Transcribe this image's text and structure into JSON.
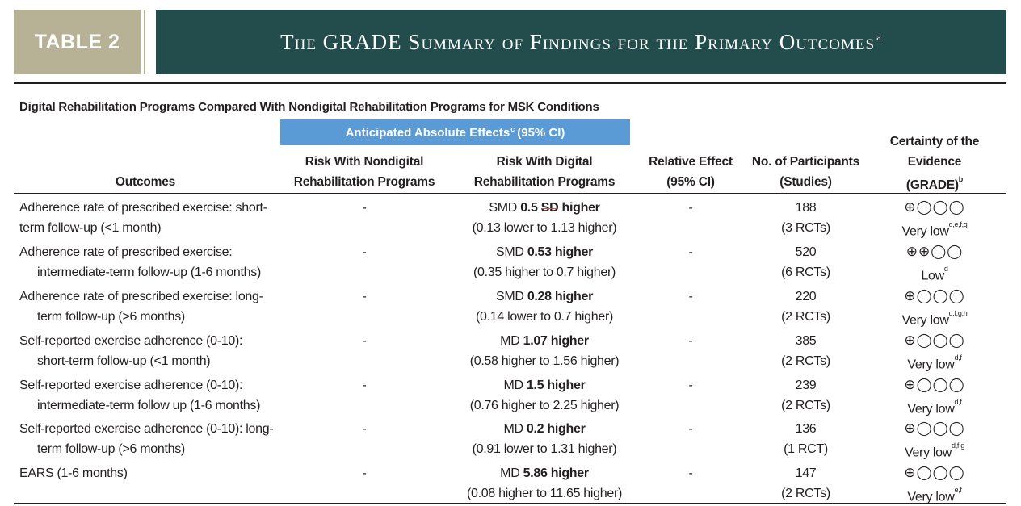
{
  "header": {
    "tag": "TABLE 2",
    "title": "The GRADE Summary of Findings for the Primary Outcomes",
    "title_sup": "a"
  },
  "subtitle": "Digital Rehabilitation Programs Compared With Nondigital Rehabilitation Programs for MSK Conditions",
  "anticipated": {
    "label": "Anticipated Absolute Effects",
    "sup": "c",
    "suffix": "(95% CI)"
  },
  "columns": {
    "outcomes": "Outcomes",
    "nondigital": [
      "Risk With Nondigital",
      "Rehabilitation Programs"
    ],
    "digital": [
      "Risk With Digital",
      "Rehabilitation Programs"
    ],
    "relative": [
      "Relative Effect",
      "(95% CI)"
    ],
    "participants": [
      "No. of Participants",
      "(Studies)"
    ],
    "certainty": [
      "Certainty of the",
      "Evidence",
      "(GRADE)",
      "b"
    ]
  },
  "rows": [
    {
      "outcome": [
        "Adherence rate of prescribed exercise: short-",
        "term follow-up (<1 month)"
      ],
      "outcome_indent": false,
      "nondigital": "-",
      "digital_prefix": "SMD",
      "digital_bold": "0.5",
      "digital_sd": "SD",
      "digital_suffix": "higher",
      "digital_ci": "(0.13 lower to 1.13 higher)",
      "relative": "-",
      "participants": "188",
      "studies": "(3 RCTs)",
      "grade_symbols": "⊕◯◯◯",
      "grade_label": "Very low",
      "grade_sup": "d,e,f,g"
    },
    {
      "outcome": [
        "Adherence rate of prescribed exercise:",
        "intermediate-term follow-up (1-6 months)"
      ],
      "outcome_indent": true,
      "nondigital": "-",
      "digital_prefix": "SMD",
      "digital_bold": "0.53 higher",
      "digital_sd": "",
      "digital_suffix": "",
      "digital_ci": "(0.35 higher to 0.7 higher)",
      "relative": "-",
      "participants": "520",
      "studies": "(6 RCTs)",
      "grade_symbols": "⊕⊕◯◯",
      "grade_label": "Low",
      "grade_sup": "d"
    },
    {
      "outcome": [
        "Adherence rate of prescribed exercise: long-",
        "term follow-up (>6 months)"
      ],
      "outcome_indent": true,
      "nondigital": "-",
      "digital_prefix": "SMD",
      "digital_bold": "0.28 higher",
      "digital_sd": "",
      "digital_suffix": "",
      "digital_ci": "(0.14 lower to 0.7 higher)",
      "relative": "-",
      "participants": "220",
      "studies": "(2 RCTs)",
      "grade_symbols": "⊕◯◯◯",
      "grade_label": "Very low",
      "grade_sup": "d,f,g,h"
    },
    {
      "outcome": [
        "Self-reported exercise adherence (0-10):",
        "short-term follow-up (<1 month)"
      ],
      "outcome_indent": true,
      "nondigital": "-",
      "digital_prefix": "MD",
      "digital_bold": "1.07 higher",
      "digital_sd": "",
      "digital_suffix": "",
      "digital_ci": "(0.58 higher to 1.56 higher)",
      "relative": "-",
      "participants": "385",
      "studies": "(2 RCTs)",
      "grade_symbols": "⊕◯◯◯",
      "grade_label": "Very low",
      "grade_sup": "d,f"
    },
    {
      "outcome": [
        "Self-reported exercise adherence (0-10):",
        "intermediate-term follow up (1-6 months)"
      ],
      "outcome_indent": true,
      "nondigital": "-",
      "digital_prefix": "MD",
      "digital_bold": "1.5 higher",
      "digital_sd": "",
      "digital_suffix": "",
      "digital_ci": "(0.76 higher to 2.25 higher)",
      "relative": "-",
      "participants": "239",
      "studies": "(2 RCTs)",
      "grade_symbols": "⊕◯◯◯",
      "grade_label": "Very low",
      "grade_sup": "d,f"
    },
    {
      "outcome": [
        "Self-reported exercise adherence (0-10): long-",
        "term follow-up (>6 months)"
      ],
      "outcome_indent": true,
      "nondigital": "-",
      "digital_prefix": "MD",
      "digital_bold": "0.2 higher",
      "digital_sd": "",
      "digital_suffix": "",
      "digital_ci": "(0.91 lower to 1.31 higher)",
      "relative": "-",
      "participants": "136",
      "studies": "(1 RCT)",
      "grade_symbols": "⊕◯◯◯",
      "grade_label": "Very low",
      "grade_sup": "d,f,g"
    },
    {
      "outcome": [
        "EARS (1-6 months)",
        ""
      ],
      "outcome_indent": false,
      "nondigital": "-",
      "digital_prefix": "MD",
      "digital_bold": "5.86 higher",
      "digital_sd": "",
      "digital_suffix": "",
      "digital_ci": "(0.08 higher to 11.65 higher)",
      "relative": "-",
      "participants": "147",
      "studies": "(2 RCTs)",
      "grade_symbols": "⊕◯◯◯",
      "grade_label": "Very low",
      "grade_sup": "e,f"
    }
  ]
}
